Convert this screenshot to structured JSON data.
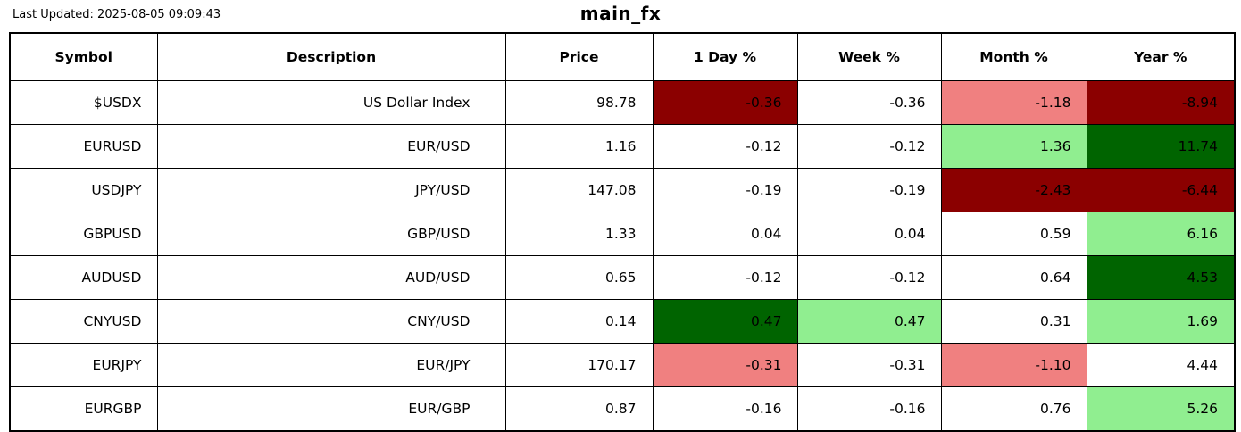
{
  "page": {
    "last_updated": "Last Updated: 2025-08-05 09:09:43",
    "title": "main_fx"
  },
  "colors": {
    "white": "#FFFFFF",
    "dark_red": "#8B0000",
    "light_red": "#F08080",
    "light_green": "#90EE90",
    "dark_green": "#006400"
  },
  "table": {
    "columns": [
      "Symbol",
      "Description",
      "Price",
      "1 Day %",
      "Week %",
      "Month %",
      "Year %"
    ],
    "rows": [
      {
        "symbol": "$USDX",
        "desc": "US Dollar Index",
        "price": "98.78",
        "day": "-0.36",
        "week": "-0.36",
        "month": "-1.18",
        "year": "-8.94",
        "day_bg": "dark_red",
        "week_bg": "white",
        "month_bg": "light_red",
        "year_bg": "dark_red"
      },
      {
        "symbol": "EURUSD",
        "desc": "EUR/USD",
        "price": "1.16",
        "day": "-0.12",
        "week": "-0.12",
        "month": "1.36",
        "year": "11.74",
        "day_bg": "white",
        "week_bg": "white",
        "month_bg": "light_green",
        "year_bg": "dark_green"
      },
      {
        "symbol": "USDJPY",
        "desc": "JPY/USD",
        "price": "147.08",
        "day": "-0.19",
        "week": "-0.19",
        "month": "-2.43",
        "year": "-6.44",
        "day_bg": "white",
        "week_bg": "white",
        "month_bg": "dark_red",
        "year_bg": "dark_red"
      },
      {
        "symbol": "GBPUSD",
        "desc": "GBP/USD",
        "price": "1.33",
        "day": "0.04",
        "week": "0.04",
        "month": "0.59",
        "year": "6.16",
        "day_bg": "white",
        "week_bg": "white",
        "month_bg": "white",
        "year_bg": "light_green"
      },
      {
        "symbol": "AUDUSD",
        "desc": "AUD/USD",
        "price": "0.65",
        "day": "-0.12",
        "week": "-0.12",
        "month": "0.64",
        "year": "4.53",
        "day_bg": "white",
        "week_bg": "white",
        "month_bg": "white",
        "year_bg": "dark_green"
      },
      {
        "symbol": "CNYUSD",
        "desc": "CNY/USD",
        "price": "0.14",
        "day": "0.47",
        "week": "0.47",
        "month": "0.31",
        "year": "1.69",
        "day_bg": "dark_green",
        "week_bg": "light_green",
        "month_bg": "white",
        "year_bg": "light_green"
      },
      {
        "symbol": "EURJPY",
        "desc": "EUR/JPY",
        "price": "170.17",
        "day": "-0.31",
        "week": "-0.31",
        "month": "-1.10",
        "year": "4.44",
        "day_bg": "light_red",
        "week_bg": "white",
        "month_bg": "light_red",
        "year_bg": "white"
      },
      {
        "symbol": "EURGBP",
        "desc": "EUR/GBP",
        "price": "0.87",
        "day": "-0.16",
        "week": "-0.16",
        "month": "0.76",
        "year": "5.26",
        "day_bg": "white",
        "week_bg": "white",
        "month_bg": "white",
        "year_bg": "light_green"
      }
    ]
  },
  "chart_data": {
    "type": "table",
    "title": "main_fx",
    "subtitle": "Last Updated: 2025-08-05 09:09:43",
    "columns": [
      "Symbol",
      "Description",
      "Price",
      "1 Day %",
      "Week %",
      "Month %",
      "Year %"
    ],
    "rows": [
      [
        "$USDX",
        "US Dollar Index",
        98.78,
        -0.36,
        -0.36,
        -1.18,
        -8.94
      ],
      [
        "EURUSD",
        "EUR/USD",
        1.16,
        -0.12,
        -0.12,
        1.36,
        11.74
      ],
      [
        "USDJPY",
        "JPY/USD",
        147.08,
        -0.19,
        -0.19,
        -2.43,
        -6.44
      ],
      [
        "GBPUSD",
        "GBP/USD",
        1.33,
        0.04,
        0.04,
        0.59,
        6.16
      ],
      [
        "AUDUSD",
        "AUD/USD",
        0.65,
        -0.12,
        -0.12,
        0.64,
        4.53
      ],
      [
        "CNYUSD",
        "CNY/USD",
        0.14,
        0.47,
        0.47,
        0.31,
        1.69
      ],
      [
        "EURJPY",
        "EUR/JPY",
        170.17,
        -0.31,
        -0.31,
        -1.1,
        4.44
      ],
      [
        "EURGBP",
        "EUR/GBP",
        0.87,
        -0.16,
        -0.16,
        0.76,
        5.26
      ]
    ],
    "layout_hints": {
      "grid": true,
      "cell_text_color": "black",
      "highlight_colors": {
        "strong_negative": "#8B0000",
        "mild_negative": "#F08080",
        "neutral": "#FFFFFF",
        "mild_positive": "#90EE90",
        "strong_positive": "#006400"
      }
    }
  }
}
